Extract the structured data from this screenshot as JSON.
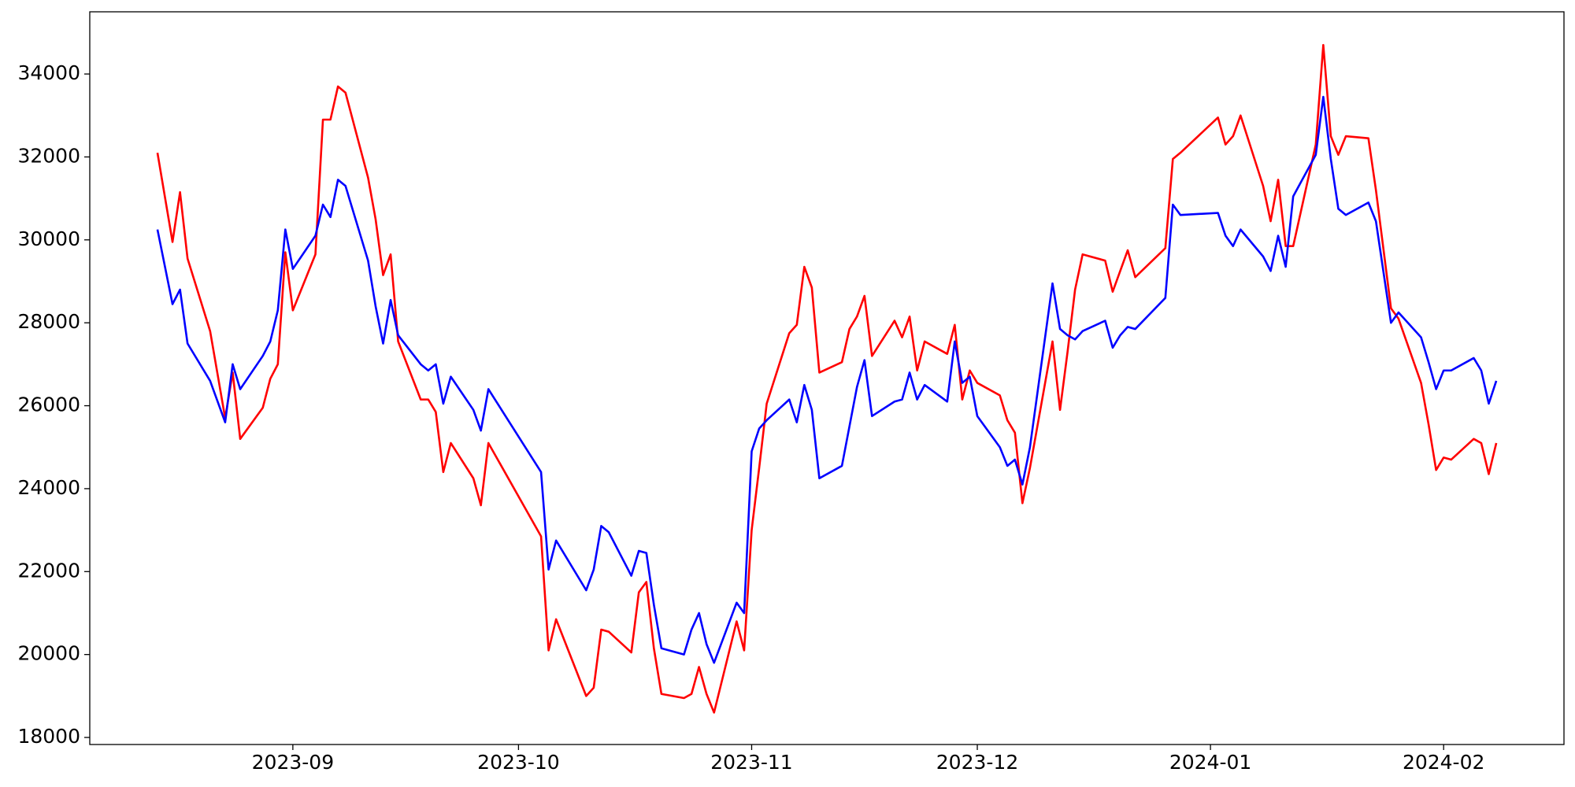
{
  "chart_data": {
    "type": "line",
    "x": [
      "2023-08-14",
      "2023-08-16",
      "2023-08-17",
      "2023-08-18",
      "2023-08-21",
      "2023-08-23",
      "2023-08-24",
      "2023-08-25",
      "2023-08-28",
      "2023-08-29",
      "2023-08-30",
      "2023-08-31",
      "2023-09-01",
      "2023-09-04",
      "2023-09-05",
      "2023-09-06",
      "2023-09-07",
      "2023-09-08",
      "2023-09-11",
      "2023-09-12",
      "2023-09-13",
      "2023-09-14",
      "2023-09-15",
      "2023-09-18",
      "2023-09-19",
      "2023-09-20",
      "2023-09-21",
      "2023-09-22",
      "2023-09-25",
      "2023-09-26",
      "2023-09-27",
      "2023-10-04",
      "2023-10-05",
      "2023-10-06",
      "2023-10-10",
      "2023-10-11",
      "2023-10-12",
      "2023-10-13",
      "2023-10-16",
      "2023-10-17",
      "2023-10-18",
      "2023-10-19",
      "2023-10-20",
      "2023-10-23",
      "2023-10-24",
      "2023-10-25",
      "2023-10-26",
      "2023-10-27",
      "2023-10-30",
      "2023-10-31",
      "2023-11-01",
      "2023-11-02",
      "2023-11-03",
      "2023-11-06",
      "2023-11-07",
      "2023-11-08",
      "2023-11-09",
      "2023-11-10",
      "2023-11-13",
      "2023-11-14",
      "2023-11-15",
      "2023-11-16",
      "2023-11-17",
      "2023-11-20",
      "2023-11-21",
      "2023-11-22",
      "2023-11-23",
      "2023-11-24",
      "2023-11-27",
      "2023-11-28",
      "2023-11-29",
      "2023-11-30",
      "2023-12-01",
      "2023-12-04",
      "2023-12-05",
      "2023-12-06",
      "2023-12-07",
      "2023-12-08",
      "2023-12-11",
      "2023-12-12",
      "2023-12-13",
      "2023-12-14",
      "2023-12-15",
      "2023-12-18",
      "2023-12-19",
      "2023-12-20",
      "2023-12-21",
      "2023-12-22",
      "2023-12-26",
      "2023-12-27",
      "2023-12-28",
      "2024-01-02",
      "2024-01-03",
      "2024-01-04",
      "2024-01-05",
      "2024-01-08",
      "2024-01-09",
      "2024-01-10",
      "2024-01-11",
      "2024-01-12",
      "2024-01-15",
      "2024-01-16",
      "2024-01-17",
      "2024-01-18",
      "2024-01-19",
      "2024-01-22",
      "2024-01-23",
      "2024-01-25",
      "2024-01-26",
      "2024-01-29",
      "2024-01-30",
      "2024-01-31",
      "2024-02-01",
      "2024-02-02",
      "2024-02-05",
      "2024-02-06",
      "2024-02-07",
      "2024-02-08"
    ],
    "series": [
      {
        "color": "#ff0000",
        "values": [
          32100,
          29950,
          31150,
          29550,
          27800,
          25700,
          26800,
          25200,
          25950,
          26650,
          27000,
          29700,
          28300,
          29650,
          32900,
          32900,
          33700,
          33550,
          31500,
          30500,
          29150,
          29650,
          27550,
          26150,
          26150,
          25850,
          24400,
          25100,
          24250,
          23600,
          25100,
          22850,
          20100,
          20850,
          19000,
          19200,
          20600,
          20550,
          20050,
          21500,
          21750,
          20150,
          19050,
          18950,
          19050,
          19700,
          19050,
          18600,
          20800,
          20100,
          23000,
          24500,
          26050,
          27750,
          27950,
          29350,
          28850,
          26800,
          27050,
          27850,
          28150,
          28650,
          27200,
          28050,
          27650,
          28150,
          26850,
          27550,
          27250,
          27950,
          26150,
          26850,
          26550,
          26250,
          25650,
          25350,
          23650,
          24500,
          27550,
          25900,
          27300,
          28800,
          29650,
          29500,
          28750,
          29250,
          29750,
          29100,
          29800,
          31950,
          32100,
          32950,
          32300,
          32500,
          33000,
          31300,
          30450,
          31450,
          29850,
          29850,
          32300,
          34700,
          32500,
          32050,
          32500,
          32450,
          31200,
          28350,
          28100,
          26550,
          25550,
          24450,
          24750,
          24700,
          25200,
          25100,
          24350,
          25100
        ]
      },
      {
        "color": "#0000ff",
        "values": [
          30250,
          28450,
          28800,
          27500,
          26600,
          25600,
          27000,
          26400,
          27200,
          27550,
          28300,
          30250,
          29300,
          30100,
          30850,
          30550,
          31450,
          31300,
          29500,
          28400,
          27500,
          28550,
          27700,
          27000,
          26850,
          27000,
          26050,
          26700,
          25900,
          25400,
          26400,
          24400,
          22050,
          22750,
          21550,
          22050,
          23100,
          22950,
          21900,
          22500,
          22450,
          21200,
          20150,
          20000,
          20600,
          21000,
          20250,
          19800,
          21250,
          21000,
          24900,
          25450,
          25650,
          26150,
          25600,
          26500,
          25900,
          24250,
          24550,
          25500,
          26450,
          27100,
          25750,
          26100,
          26150,
          26800,
          26150,
          26500,
          26100,
          27550,
          26550,
          26700,
          25750,
          25000,
          24550,
          24700,
          24100,
          25000,
          28950,
          27850,
          27700,
          27600,
          27800,
          28050,
          27400,
          27700,
          27900,
          27850,
          28600,
          30850,
          30600,
          30650,
          30100,
          29850,
          30250,
          29600,
          29250,
          30100,
          29350,
          31050,
          32050,
          33450,
          31950,
          30750,
          30600,
          30900,
          30450,
          28000,
          28250,
          27650,
          27050,
          26400,
          26850,
          26850,
          27150,
          26850,
          26050,
          26600
        ]
      }
    ],
    "xlim": [
      "2023-08-05",
      "2024-02-17"
    ],
    "xticks": [
      {
        "value": "2023-09-01",
        "label": "2023-09"
      },
      {
        "value": "2023-10-01",
        "label": "2023-10"
      },
      {
        "value": "2023-11-01",
        "label": "2023-11"
      },
      {
        "value": "2023-12-01",
        "label": "2023-12"
      },
      {
        "value": "2024-01-01",
        "label": "2024-01"
      },
      {
        "value": "2024-02-01",
        "label": "2024-02"
      }
    ],
    "ylim": [
      17830,
      35500
    ],
    "yticks": [
      18000,
      20000,
      22000,
      24000,
      26000,
      28000,
      30000,
      32000,
      34000
    ]
  }
}
